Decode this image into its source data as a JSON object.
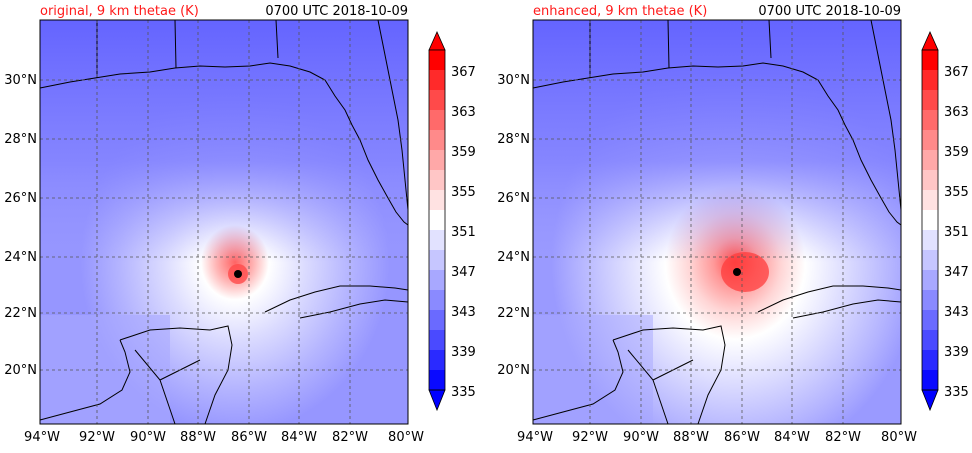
{
  "panels": [
    {
      "title_left": "original, 9 km thetae (K)",
      "title_right": "0700 UTC 2018-10-09",
      "lat_ticks": [
        "30°N",
        "28°N",
        "26°N",
        "24°N",
        "22°N",
        "20°N"
      ],
      "lon_ticks": [
        "94°W",
        "92°W",
        "90°W",
        "88°W",
        "86°W",
        "84°W",
        "82°W",
        "80°W"
      ],
      "colorbar_ticks": [
        "367",
        "363",
        "359",
        "355",
        "351",
        "347",
        "343",
        "339",
        "335"
      ]
    },
    {
      "title_left": "enhanced, 9 km thetae (K)",
      "title_right": "0700 UTC 2018-10-09",
      "lat_ticks": [
        "30°N",
        "28°N",
        "26°N",
        "24°N",
        "22°N",
        "20°N"
      ],
      "lon_ticks": [
        "94°W",
        "92°W",
        "90°W",
        "88°W",
        "86°W",
        "84°W",
        "82°W",
        "80°W"
      ],
      "colorbar_ticks": [
        "367",
        "363",
        "359",
        "355",
        "351",
        "347",
        "343",
        "339",
        "335"
      ]
    }
  ],
  "colors": {
    "cold_end": "#0a0aff",
    "neutral": "#ffffff",
    "warm_end": "#ff0000",
    "title_accent": "#ff1a1a"
  }
}
